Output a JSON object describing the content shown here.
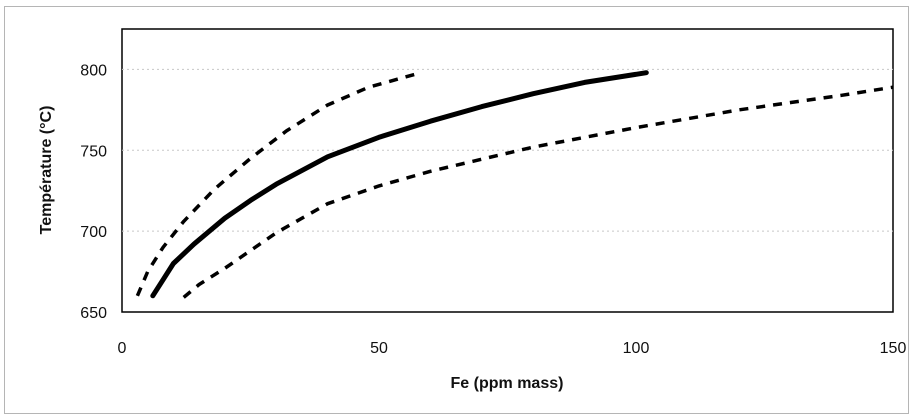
{
  "chart_data": {
    "type": "line",
    "title": "",
    "xlabel": "Fe (ppm mass)",
    "ylabel": "Température (°C)",
    "xlim": [
      0,
      150
    ],
    "ylim": [
      650,
      825
    ],
    "x_ticks": [
      0,
      50,
      100,
      150
    ],
    "y_ticks": [
      650,
      700,
      750,
      800
    ],
    "grid": "horizontal dotted",
    "legend": "none",
    "series": [
      {
        "style": "solid",
        "color": "#000000",
        "points": [
          [
            6,
            660
          ],
          [
            8,
            670
          ],
          [
            10,
            680
          ],
          [
            14,
            692
          ],
          [
            20,
            708
          ],
          [
            25,
            719
          ],
          [
            30,
            729
          ],
          [
            40,
            746
          ],
          [
            50,
            758
          ],
          [
            60,
            768
          ],
          [
            70,
            777
          ],
          [
            80,
            785
          ],
          [
            90,
            792
          ],
          [
            102,
            798
          ]
        ]
      },
      {
        "style": "dashed",
        "color": "#000000",
        "points": [
          [
            3,
            660
          ],
          [
            5,
            675
          ],
          [
            8,
            690
          ],
          [
            12,
            706
          ],
          [
            18,
            726
          ],
          [
            25,
            745
          ],
          [
            32,
            762
          ],
          [
            40,
            778
          ],
          [
            48,
            789
          ],
          [
            57,
            797
          ]
        ]
      },
      {
        "style": "dashed",
        "color": "#000000",
        "points": [
          [
            12,
            659
          ],
          [
            15,
            667
          ],
          [
            20,
            677
          ],
          [
            30,
            699
          ],
          [
            40,
            717
          ],
          [
            50,
            728
          ],
          [
            60,
            737
          ],
          [
            80,
            752
          ],
          [
            100,
            764
          ],
          [
            120,
            775
          ],
          [
            140,
            784
          ],
          [
            150,
            789
          ]
        ]
      }
    ]
  }
}
